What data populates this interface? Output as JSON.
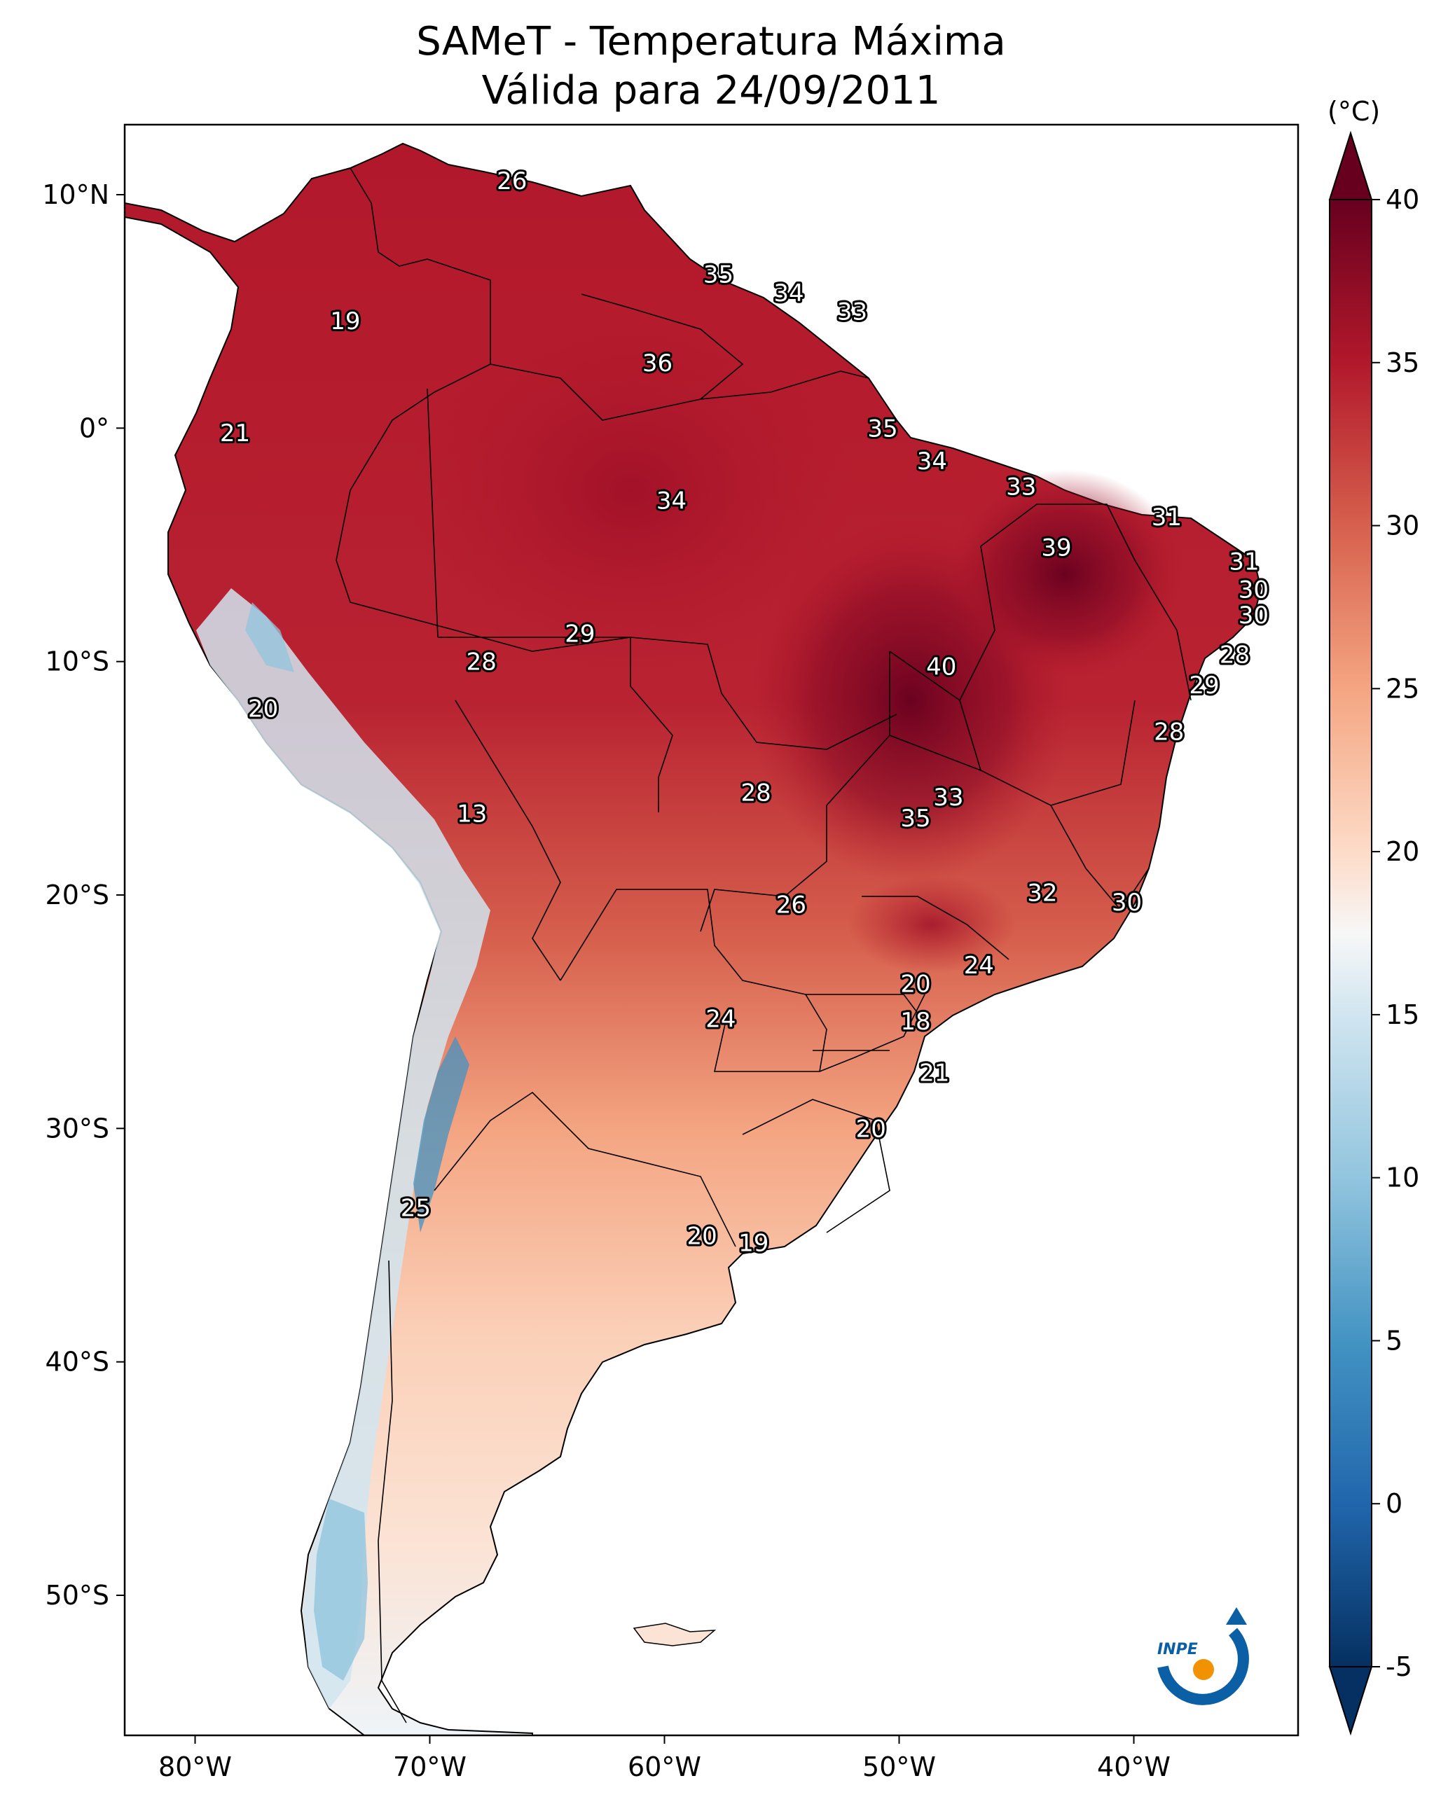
{
  "title": {
    "line1": "SAMeT - Temperatura Máxima",
    "line2": "Válida para 24/09/2011"
  },
  "axes": {
    "lon_range": [
      -83,
      -33
    ],
    "lat_range": [
      -56,
      13
    ],
    "lon_ticks": [
      {
        "value": -80,
        "label": "80°W"
      },
      {
        "value": -70,
        "label": "70°W"
      },
      {
        "value": -60,
        "label": "60°W"
      },
      {
        "value": -50,
        "label": "50°W"
      },
      {
        "value": -40,
        "label": "40°W"
      }
    ],
    "lat_ticks": [
      {
        "value": 10,
        "label": "10°N"
      },
      {
        "value": 0,
        "label": "0°"
      },
      {
        "value": -10,
        "label": "10°S"
      },
      {
        "value": -20,
        "label": "20°S"
      },
      {
        "value": -30,
        "label": "30°S"
      },
      {
        "value": -40,
        "label": "40°S"
      },
      {
        "value": -50,
        "label": "50°S"
      }
    ]
  },
  "colorbar": {
    "unit": "(°C)",
    "min": -5,
    "max": 40,
    "extend": "both",
    "colormap": "RdBu_r",
    "ticks": [
      {
        "value": -5,
        "label": "-5"
      },
      {
        "value": 0,
        "label": "0"
      },
      {
        "value": 5,
        "label": "5"
      },
      {
        "value": 10,
        "label": "10"
      },
      {
        "value": 15,
        "label": "15"
      },
      {
        "value": 20,
        "label": "20"
      },
      {
        "value": 25,
        "label": "25"
      },
      {
        "value": 30,
        "label": "30"
      },
      {
        "value": 35,
        "label": "35"
      },
      {
        "value": 40,
        "label": "40"
      }
    ],
    "stops": [
      {
        "value": -5,
        "color": "#053061"
      },
      {
        "value": 0,
        "color": "#2166ac"
      },
      {
        "value": 5,
        "color": "#4393c3"
      },
      {
        "value": 10,
        "color": "#92c5de"
      },
      {
        "value": 15,
        "color": "#d1e5f0"
      },
      {
        "value": 17.5,
        "color": "#f7f7f7"
      },
      {
        "value": 20,
        "color": "#fddbc7"
      },
      {
        "value": 25,
        "color": "#f4a582"
      },
      {
        "value": 30,
        "color": "#d6604d"
      },
      {
        "value": 35,
        "color": "#b2182b"
      },
      {
        "value": 40,
        "color": "#67001f"
      }
    ]
  },
  "station_labels": [
    {
      "lon": -66.5,
      "lat": 10.6,
      "value": "26"
    },
    {
      "lon": -57.7,
      "lat": 6.6,
      "value": "35"
    },
    {
      "lon": -54.7,
      "lat": 5.8,
      "value": "34"
    },
    {
      "lon": -52.0,
      "lat": 5.0,
      "value": "33"
    },
    {
      "lon": -73.6,
      "lat": 4.6,
      "value": "19"
    },
    {
      "lon": -60.3,
      "lat": 2.8,
      "value": "36"
    },
    {
      "lon": -50.7,
      "lat": 0.0,
      "value": "35"
    },
    {
      "lon": -78.3,
      "lat": -0.2,
      "value": "21"
    },
    {
      "lon": -48.6,
      "lat": -1.4,
      "value": "34"
    },
    {
      "lon": -44.8,
      "lat": -2.5,
      "value": "33"
    },
    {
      "lon": -59.7,
      "lat": -3.1,
      "value": "34"
    },
    {
      "lon": -38.6,
      "lat": -3.8,
      "value": "31"
    },
    {
      "lon": -43.3,
      "lat": -5.1,
      "value": "39"
    },
    {
      "lon": -35.3,
      "lat": -5.7,
      "value": "31"
    },
    {
      "lon": -34.9,
      "lat": -6.9,
      "value": "30"
    },
    {
      "lon": -34.9,
      "lat": -8.0,
      "value": "30"
    },
    {
      "lon": -63.6,
      "lat": -8.8,
      "value": "29"
    },
    {
      "lon": -35.7,
      "lat": -9.7,
      "value": "28"
    },
    {
      "lon": -67.8,
      "lat": -10.0,
      "value": "28"
    },
    {
      "lon": -48.2,
      "lat": -10.2,
      "value": "40"
    },
    {
      "lon": -37.0,
      "lat": -11.0,
      "value": "29"
    },
    {
      "lon": -77.1,
      "lat": -12.0,
      "value": "20"
    },
    {
      "lon": -38.5,
      "lat": -13.0,
      "value": "28"
    },
    {
      "lon": -56.1,
      "lat": -15.6,
      "value": "28"
    },
    {
      "lon": -47.9,
      "lat": -15.8,
      "value": "33"
    },
    {
      "lon": -49.3,
      "lat": -16.7,
      "value": "35"
    },
    {
      "lon": -68.2,
      "lat": -16.5,
      "value": "13"
    },
    {
      "lon": -43.9,
      "lat": -19.9,
      "value": "32"
    },
    {
      "lon": -40.3,
      "lat": -20.3,
      "value": "30"
    },
    {
      "lon": -54.6,
      "lat": -20.4,
      "value": "26"
    },
    {
      "lon": -46.6,
      "lat": -23.0,
      "value": "24"
    },
    {
      "lon": -49.3,
      "lat": -23.8,
      "value": "20"
    },
    {
      "lon": -57.6,
      "lat": -25.3,
      "value": "24"
    },
    {
      "lon": -49.3,
      "lat": -25.4,
      "value": "18"
    },
    {
      "lon": -48.5,
      "lat": -27.6,
      "value": "21"
    },
    {
      "lon": -51.2,
      "lat": -30.0,
      "value": "20"
    },
    {
      "lon": -70.6,
      "lat": -33.4,
      "value": "25"
    },
    {
      "lon": -58.4,
      "lat": -34.6,
      "value": "20"
    },
    {
      "lon": -56.2,
      "lat": -34.9,
      "value": "19"
    }
  ],
  "logo": {
    "text": "INPE"
  }
}
